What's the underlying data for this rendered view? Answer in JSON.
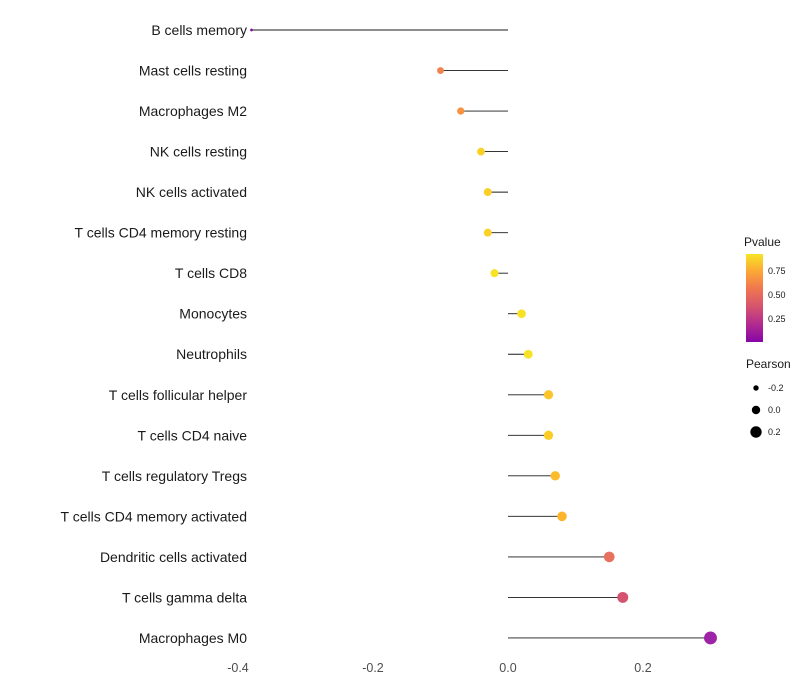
{
  "chart_data": {
    "type": "lollipop",
    "orientation": "horizontal",
    "title": "",
    "xlabel": "",
    "ylabel": "",
    "background": "#ffffff",
    "stem_color": "#1a1a1a",
    "baseline": 0.0,
    "xlim": [
      -0.44,
      0.33
    ],
    "x_ticks": [
      "-0.4",
      "-0.2",
      "0.0",
      "0.2"
    ],
    "x_tick_values": [
      -0.4,
      -0.2,
      0.0,
      0.2
    ],
    "categories": [
      "B cells memory",
      "Mast cells resting",
      "Macrophages M2",
      "NK cells resting",
      "NK cells activated",
      "T cells CD4 memory resting",
      "T cells CD8",
      "Monocytes",
      "Neutrophils",
      "T cells follicular helper",
      "T cells CD4 naive",
      "T cells regulatory  Tregs",
      "T cells CD4 memory activated",
      "Dendritic cells activated",
      "T cells gamma delta",
      "Macrophages M0"
    ],
    "series_name": "Pearson correlation",
    "values": [
      -0.38,
      -0.1,
      -0.07,
      -0.04,
      -0.03,
      -0.03,
      -0.02,
      0.02,
      0.03,
      0.06,
      0.06,
      0.07,
      0.08,
      0.15,
      0.17,
      0.3
    ],
    "point_colors": [
      "#8405a7",
      "#f0834e",
      "#f89441",
      "#fbd024",
      "#fcce25",
      "#fcd025",
      "#f7e225",
      "#f7e225",
      "#f7e225",
      "#fcc52b",
      "#fcce25",
      "#fcba2d",
      "#fcb42c",
      "#e8705f",
      "#d5536f",
      "#9d24a6"
    ],
    "legend": {
      "color": {
        "title": "Pvalue",
        "ticks": [
          "0.75",
          "0.50",
          "0.25"
        ],
        "gradient_top_to_bottom": [
          "#f7e425",
          "#fca636",
          "#ef7550",
          "#d5536f",
          "#b12a90",
          "#8606a6"
        ],
        "position": "right"
      },
      "size": {
        "title": "Pearson",
        "labels": [
          "-0.2",
          "0.0",
          "0.2"
        ],
        "values": [
          -0.2,
          0.0,
          0.2
        ],
        "dot_color": "#000000",
        "position": "right"
      }
    }
  }
}
